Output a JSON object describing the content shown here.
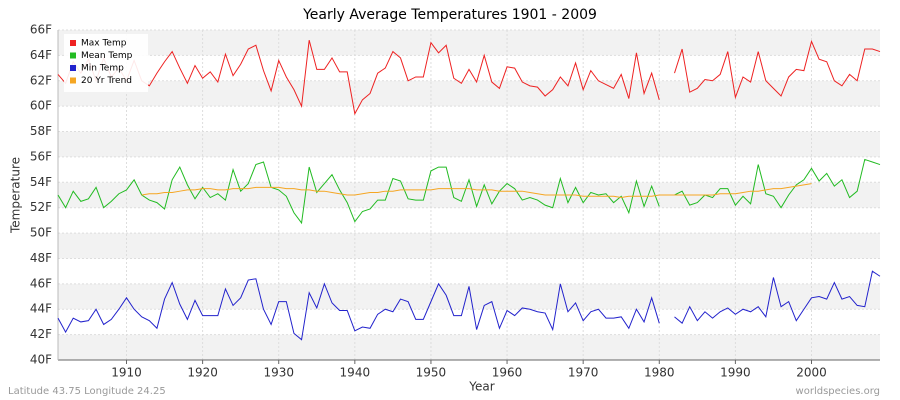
{
  "chart_data": {
    "type": "line",
    "title": "Yearly Average Temperatures 1901 - 2009",
    "x_label": "Year",
    "y_label": "Temperature",
    "footer_left": "Latitude 43.75 Longitude 24.25",
    "footer_right": "worldspecies.org",
    "x": [
      1901,
      1902,
      1903,
      1904,
      1905,
      1906,
      1907,
      1908,
      1909,
      1910,
      1911,
      1912,
      1913,
      1914,
      1915,
      1916,
      1917,
      1918,
      1919,
      1920,
      1921,
      1922,
      1923,
      1924,
      1925,
      1926,
      1927,
      1928,
      1929,
      1930,
      1931,
      1932,
      1933,
      1934,
      1935,
      1936,
      1937,
      1938,
      1939,
      1940,
      1941,
      1942,
      1943,
      1944,
      1945,
      1946,
      1947,
      1948,
      1949,
      1950,
      1951,
      1952,
      1953,
      1954,
      1955,
      1956,
      1957,
      1958,
      1959,
      1960,
      1961,
      1962,
      1963,
      1964,
      1965,
      1966,
      1967,
      1968,
      1969,
      1970,
      1971,
      1972,
      1973,
      1974,
      1975,
      1976,
      1977,
      1978,
      1979,
      1980,
      1981,
      1982,
      1983,
      1984,
      1985,
      1986,
      1987,
      1988,
      1989,
      1990,
      1991,
      1992,
      1993,
      1994,
      1995,
      1996,
      1997,
      1998,
      1999,
      2000,
      2001,
      2002,
      2003,
      2004,
      2005,
      2006,
      2007,
      2008,
      2009
    ],
    "xlim": [
      1901,
      2009
    ],
    "xticks": [
      1910,
      1920,
      1930,
      1940,
      1950,
      1960,
      1970,
      1980,
      1990,
      2000
    ],
    "ylim": [
      40,
      66
    ],
    "yticks": [
      {
        "value": 40,
        "label": "40F"
      },
      {
        "value": 42,
        "label": "42F"
      },
      {
        "value": 44,
        "label": "44F"
      },
      {
        "value": 46,
        "label": "46F"
      },
      {
        "value": 48,
        "label": "48F"
      },
      {
        "value": 50,
        "label": "50F"
      },
      {
        "value": 52,
        "label": "52F"
      },
      {
        "value": 54,
        "label": "54F"
      },
      {
        "value": 56,
        "label": "56F"
      },
      {
        "value": 58,
        "label": "58F"
      },
      {
        "value": 60,
        "label": "60F"
      },
      {
        "value": 62,
        "label": "62F"
      },
      {
        "value": 64,
        "label": "64F"
      },
      {
        "value": 66,
        "label": "66F"
      }
    ],
    "grid": true,
    "legend": "top-left",
    "series": [
      {
        "name": "Max Temp",
        "color": "#ee2222",
        "values": [
          62.5,
          61.8,
          63.5,
          62.6,
          63.7,
          62.0,
          63.8,
          62.3,
          63.0,
          62.0,
          63.6,
          62.0,
          61.6,
          62.6,
          63.5,
          64.3,
          63.0,
          61.8,
          63.2,
          62.2,
          62.7,
          61.9,
          64.1,
          62.4,
          63.3,
          64.5,
          64.8,
          62.8,
          61.2,
          63.6,
          62.3,
          61.3,
          60.0,
          65.2,
          62.9,
          62.9,
          63.8,
          62.7,
          62.7,
          59.4,
          60.5,
          61.0,
          62.6,
          63.0,
          64.3,
          63.8,
          62.0,
          62.3,
          62.3,
          65.0,
          64.2,
          64.8,
          62.2,
          61.8,
          62.9,
          61.9,
          64.0,
          61.9,
          61.4,
          63.1,
          63.0,
          61.9,
          61.6,
          61.5,
          60.8,
          61.3,
          62.3,
          61.6,
          63.4,
          61.3,
          62.8,
          62.0,
          61.7,
          61.4,
          62.5,
          60.6,
          64.2,
          61.0,
          62.6,
          60.5,
          null,
          62.6,
          64.5,
          61.1,
          61.4,
          62.1,
          62.0,
          62.5,
          64.3,
          60.7,
          62.3,
          61.9,
          64.3,
          62.0,
          61.4,
          60.8,
          62.3,
          62.9,
          62.8,
          65.1,
          63.7,
          63.5,
          62.0,
          61.6,
          62.5,
          62.0,
          64.5,
          64.5,
          64.3
        ]
      },
      {
        "name": "Mean Temp",
        "color": "#22bb22",
        "values": [
          53.0,
          52.0,
          53.3,
          52.5,
          52.7,
          53.6,
          52.0,
          52.5,
          53.1,
          53.4,
          54.2,
          53.0,
          52.6,
          52.4,
          51.9,
          54.2,
          55.2,
          53.8,
          52.7,
          53.6,
          52.8,
          53.1,
          52.6,
          55.0,
          53.3,
          53.9,
          55.4,
          55.6,
          53.6,
          53.4,
          52.9,
          51.6,
          50.8,
          55.2,
          53.2,
          53.9,
          54.6,
          53.4,
          52.4,
          50.9,
          51.7,
          51.9,
          52.6,
          52.6,
          54.3,
          54.1,
          52.7,
          52.6,
          52.6,
          54.9,
          55.2,
          55.2,
          52.8,
          52.5,
          54.2,
          52.1,
          53.8,
          52.3,
          53.3,
          53.9,
          53.5,
          52.6,
          52.8,
          52.6,
          52.2,
          52.0,
          54.3,
          52.4,
          53.6,
          52.4,
          53.2,
          53.0,
          53.1,
          52.4,
          52.9,
          51.6,
          54.1,
          52.1,
          53.7,
          52.1,
          null,
          53.0,
          53.3,
          52.2,
          52.4,
          53.0,
          52.8,
          53.5,
          53.5,
          52.2,
          52.9,
          52.3,
          55.4,
          53.1,
          52.9,
          52.0,
          53.0,
          53.8,
          54.2,
          55.1,
          54.1,
          54.7,
          53.7,
          54.2,
          52.8,
          53.3,
          55.8,
          55.6,
          55.4
        ]
      },
      {
        "name": "Min Temp",
        "color": "#2222cc",
        "values": [
          43.3,
          42.2,
          43.3,
          43.0,
          43.1,
          44.0,
          42.8,
          43.2,
          44.0,
          44.9,
          44.0,
          43.4,
          43.1,
          42.5,
          44.8,
          46.1,
          44.4,
          43.2,
          44.7,
          43.5,
          43.5,
          43.5,
          45.6,
          44.3,
          44.9,
          46.3,
          46.4,
          44.0,
          42.8,
          44.6,
          44.6,
          42.1,
          41.6,
          45.3,
          44.1,
          46.0,
          44.5,
          43.9,
          43.9,
          42.3,
          42.6,
          42.5,
          43.6,
          44.0,
          43.8,
          44.8,
          44.6,
          43.2,
          43.2,
          44.6,
          46.0,
          45.1,
          43.5,
          43.5,
          45.8,
          42.4,
          44.3,
          44.6,
          42.5,
          43.9,
          43.5,
          44.1,
          44.0,
          43.8,
          43.7,
          42.4,
          46.0,
          43.8,
          44.5,
          43.1,
          43.8,
          44.0,
          43.3,
          43.3,
          43.4,
          42.5,
          44.0,
          43.0,
          44.9,
          42.9,
          null,
          43.4,
          42.9,
          44.2,
          43.1,
          43.8,
          43.3,
          43.8,
          44.1,
          43.6,
          44.0,
          43.8,
          44.2,
          43.4,
          46.5,
          44.2,
          44.6,
          43.1,
          44.0,
          44.9,
          45.0,
          44.8,
          46.1,
          44.8,
          45.0,
          44.3,
          44.2,
          47.0,
          46.6
        ]
      },
      {
        "name": "20 Yr Trend",
        "color": "#f5a623",
        "values": [
          null,
          null,
          null,
          null,
          null,
          null,
          null,
          null,
          null,
          null,
          null,
          53.0,
          53.1,
          53.1,
          53.2,
          53.2,
          53.3,
          53.4,
          53.4,
          53.5,
          53.5,
          53.4,
          53.4,
          53.5,
          53.5,
          53.5,
          53.6,
          53.6,
          53.6,
          53.6,
          53.5,
          53.5,
          53.4,
          53.4,
          53.3,
          53.3,
          53.2,
          53.1,
          53.0,
          53.0,
          53.1,
          53.2,
          53.2,
          53.3,
          53.3,
          53.4,
          53.4,
          53.4,
          53.4,
          53.4,
          53.5,
          53.5,
          53.5,
          53.5,
          53.5,
          53.4,
          53.4,
          53.4,
          53.3,
          53.3,
          53.3,
          53.3,
          53.2,
          53.1,
          53.0,
          53.0,
          53.0,
          53.0,
          53.0,
          52.9,
          52.9,
          52.9,
          52.9,
          52.9,
          52.8,
          52.9,
          52.9,
          52.9,
          52.9,
          53.0,
          53.0,
          53.0,
          53.0,
          53.0,
          53.0,
          53.0,
          53.0,
          53.1,
          53.1,
          53.1,
          53.2,
          53.3,
          53.3,
          53.4,
          53.5,
          53.5,
          53.6,
          53.7,
          53.8,
          53.9,
          null,
          null,
          null,
          null,
          null,
          null,
          null,
          null,
          null
        ]
      }
    ]
  }
}
